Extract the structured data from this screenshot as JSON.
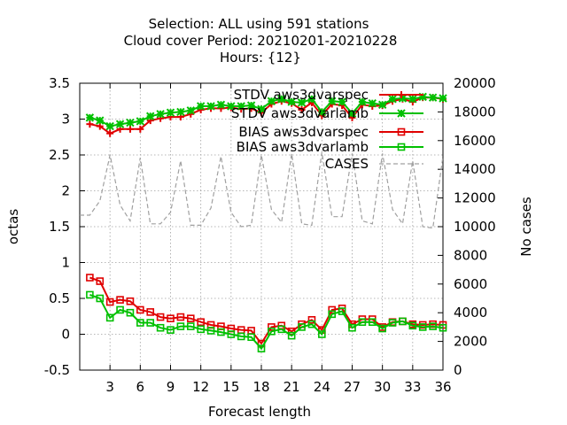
{
  "chart_data": {
    "type": "line",
    "title_lines": [
      "Selection: ALL using   591 stations",
      "Cloud cover   Period: 20210201-20210228",
      "Hours: {12}"
    ],
    "xlabel": "Forecast length",
    "ylabel": "octas",
    "y2label": "No cases",
    "xlim": [
      0,
      36
    ],
    "ylim": [
      -0.5,
      3.5
    ],
    "y2lim": [
      0,
      20000
    ],
    "xticks": [
      3,
      6,
      9,
      12,
      15,
      18,
      21,
      24,
      27,
      30,
      33,
      36
    ],
    "yticks": [
      -0.5,
      0,
      0.5,
      1,
      1.5,
      2,
      2.5,
      3,
      3.5
    ],
    "yticks_labels": [
      "-0.5",
      "0",
      "0.5",
      "1",
      "1.5",
      "2",
      "2.5",
      "3",
      "3.5"
    ],
    "y2ticks": [
      0,
      2000,
      4000,
      6000,
      8000,
      10000,
      12000,
      14000,
      16000,
      18000,
      20000
    ],
    "grid": true,
    "legend_position": "top-right",
    "series": [
      {
        "name": "STDV aws3dvarspec",
        "color": "#e00000",
        "marker": "plus",
        "axis": "y",
        "x": [
          1,
          2,
          3,
          4,
          5,
          6,
          7,
          8,
          9,
          10,
          11,
          12,
          13,
          14,
          15,
          16,
          17,
          18,
          19,
          20,
          21,
          22,
          23,
          24,
          25,
          26,
          27,
          28,
          29,
          30,
          31,
          32,
          33,
          34,
          35,
          36
        ],
        "y": [
          2.93,
          2.9,
          2.8,
          2.86,
          2.86,
          2.86,
          2.98,
          3.01,
          3.03,
          3.03,
          3.07,
          3.13,
          3.15,
          3.15,
          3.16,
          3.14,
          3.15,
          3.09,
          3.21,
          3.25,
          3.22,
          3.13,
          3.23,
          3.05,
          3.21,
          3.19,
          3.02,
          3.2,
          3.18,
          3.19,
          3.25,
          3.28,
          3.24,
          3.3,
          3.3,
          3.28
        ]
      },
      {
        "name": "STDV aws3dvarlamb",
        "color": "#00c000",
        "marker": "x",
        "axis": "y",
        "x": [
          1,
          2,
          3,
          4,
          5,
          6,
          7,
          8,
          9,
          10,
          11,
          12,
          13,
          14,
          15,
          16,
          17,
          18,
          19,
          20,
          21,
          22,
          23,
          24,
          25,
          26,
          27,
          28,
          29,
          30,
          31,
          32,
          33,
          34,
          35,
          36
        ],
        "y": [
          3.02,
          2.98,
          2.9,
          2.93,
          2.95,
          2.97,
          3.04,
          3.07,
          3.09,
          3.1,
          3.12,
          3.18,
          3.18,
          3.2,
          3.18,
          3.18,
          3.19,
          3.14,
          3.25,
          3.28,
          3.24,
          3.23,
          3.28,
          3.1,
          3.25,
          3.24,
          3.08,
          3.24,
          3.22,
          3.2,
          3.28,
          3.29,
          3.28,
          3.31,
          3.3,
          3.29
        ]
      },
      {
        "name": "BIAS aws3dvarspec",
        "color": "#e00000",
        "marker": "square",
        "axis": "y",
        "x": [
          1,
          2,
          3,
          4,
          5,
          6,
          7,
          8,
          9,
          10,
          11,
          12,
          13,
          14,
          15,
          16,
          17,
          18,
          19,
          20,
          21,
          22,
          23,
          24,
          25,
          26,
          27,
          28,
          29,
          30,
          31,
          32,
          33,
          34,
          35,
          36
        ],
        "y": [
          0.79,
          0.74,
          0.45,
          0.48,
          0.46,
          0.34,
          0.31,
          0.24,
          0.22,
          0.24,
          0.22,
          0.17,
          0.13,
          0.11,
          0.08,
          0.06,
          0.05,
          -0.13,
          0.1,
          0.12,
          0.04,
          0.14,
          0.2,
          0.06,
          0.34,
          0.36,
          0.14,
          0.21,
          0.21,
          0.1,
          0.17,
          0.18,
          0.14,
          0.13,
          0.14,
          0.13
        ]
      },
      {
        "name": "BIAS aws3dvarlamb",
        "color": "#00c000",
        "marker": "square",
        "axis": "y",
        "x": [
          1,
          2,
          3,
          4,
          5,
          6,
          7,
          8,
          9,
          10,
          11,
          12,
          13,
          14,
          15,
          16,
          17,
          18,
          19,
          20,
          21,
          22,
          23,
          24,
          25,
          26,
          27,
          28,
          29,
          30,
          31,
          32,
          33,
          34,
          35,
          36
        ],
        "y": [
          0.55,
          0.5,
          0.23,
          0.34,
          0.3,
          0.16,
          0.16,
          0.09,
          0.06,
          0.11,
          0.11,
          0.07,
          0.05,
          0.03,
          0.0,
          -0.03,
          -0.04,
          -0.2,
          0.04,
          0.07,
          -0.02,
          0.1,
          0.14,
          0.0,
          0.28,
          0.32,
          0.09,
          0.17,
          0.17,
          0.08,
          0.16,
          0.18,
          0.12,
          0.1,
          0.11,
          0.09
        ]
      },
      {
        "name": "CASES",
        "color": "#a0a0a0",
        "marker": "none",
        "dashed": true,
        "axis": "y2",
        "x": [
          0,
          1,
          2,
          3,
          4,
          5,
          6,
          7,
          8,
          9,
          10,
          11,
          12,
          13,
          14,
          15,
          16,
          17,
          18,
          19,
          20,
          21,
          22,
          23,
          24,
          25,
          26,
          27,
          28,
          29,
          30,
          31,
          32,
          33,
          34,
          35,
          36
        ],
        "y": [
          10800,
          10800,
          11800,
          15000,
          11500,
          10400,
          14800,
          10200,
          10200,
          11000,
          14600,
          10100,
          10100,
          11300,
          14900,
          11000,
          10000,
          10100,
          15000,
          11200,
          10300,
          15100,
          10200,
          10100,
          15200,
          10700,
          10700,
          15100,
          10400,
          10200,
          15100,
          11200,
          10200,
          14600,
          10000,
          9900,
          14900
        ]
      }
    ]
  }
}
